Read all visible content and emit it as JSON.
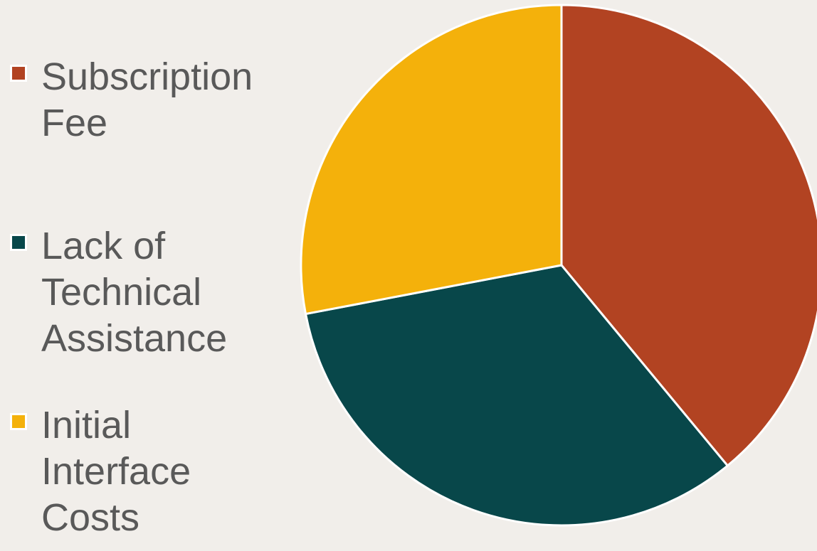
{
  "chart_data": {
    "type": "pie",
    "title": "",
    "categories": [
      "Subscription Fee",
      "Lack of Technical Assistance",
      "Initial Interface Costs"
    ],
    "values": [
      39,
      33,
      28
    ],
    "colors": [
      "#b24322",
      "#08474a",
      "#f4b10b"
    ],
    "legend_position": "left",
    "start_angle": "12 o'clock",
    "direction": "clockwise"
  }
}
